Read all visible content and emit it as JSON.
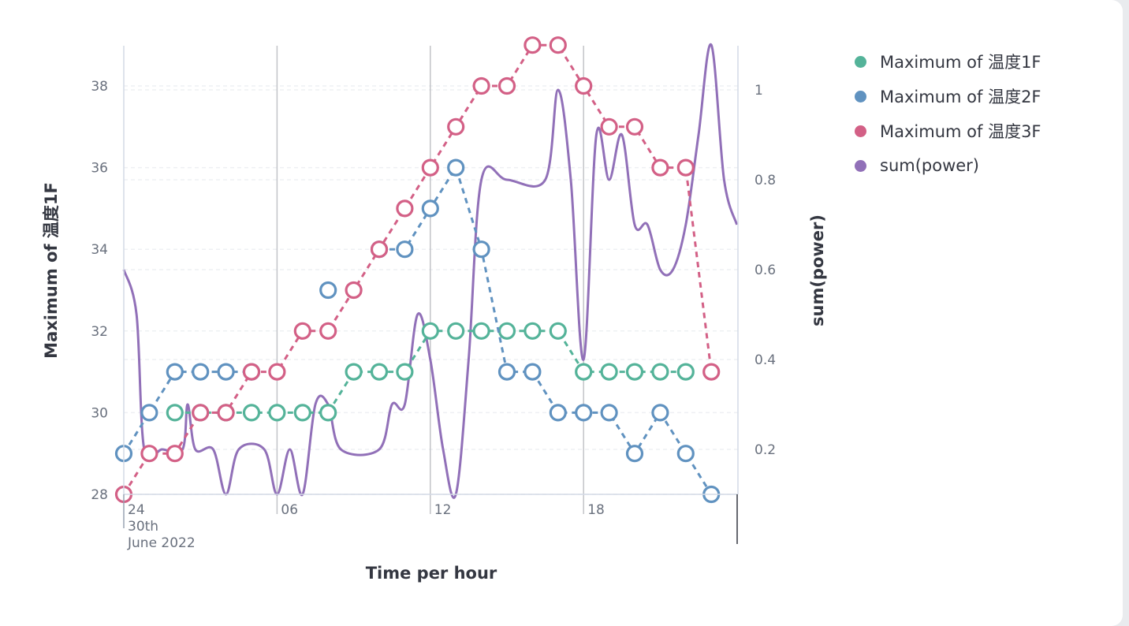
{
  "chart_data": {
    "type": "line",
    "title": "",
    "xlabel": "Time per hour",
    "ylabel_left": "Maximum of 温度1F",
    "ylabel_right": "sum(power)",
    "x_hours": [
      0,
      1,
      2,
      3,
      4,
      5,
      6,
      7,
      8,
      9,
      10,
      11,
      12,
      13,
      14,
      15,
      16,
      17,
      18,
      19,
      20,
      21,
      22,
      23
    ],
    "x_ticks": [
      {
        "hour": 0,
        "lines": [
          "24",
          "30th",
          "June 2022"
        ]
      },
      {
        "hour": 6,
        "lines": [
          "06"
        ]
      },
      {
        "hour": 12,
        "lines": [
          "12"
        ]
      },
      {
        "hour": 18,
        "lines": [
          "18"
        ]
      }
    ],
    "y_left": {
      "min": 28,
      "max": 39,
      "ticks": [
        28,
        30,
        32,
        34,
        36,
        38
      ]
    },
    "y_right": {
      "min": 0.1,
      "max": 1.1,
      "ticks": [
        0.2,
        0.4,
        0.6,
        0.8,
        1
      ]
    },
    "grid": true,
    "legend_position": "right",
    "series": [
      {
        "name": "Maximum of 温度1F",
        "axis": "left",
        "color": "#54b399",
        "style": "dashed-markers",
        "values": [
          null,
          null,
          30,
          30,
          30,
          30,
          30,
          30,
          30,
          31,
          31,
          31,
          32,
          32,
          32,
          32,
          32,
          32,
          31,
          31,
          31,
          31,
          31,
          null
        ]
      },
      {
        "name": "Maximum of 温度2F",
        "axis": "left",
        "color": "#6092c0",
        "style": "dashed-markers",
        "values": [
          29,
          30,
          31,
          31,
          31,
          31,
          null,
          null,
          33,
          null,
          34,
          34,
          35,
          36,
          34,
          31,
          31,
          30,
          30,
          30,
          29,
          30,
          29,
          28
        ]
      },
      {
        "name": "Maximum of 温度3F",
        "axis": "left",
        "color": "#d36086",
        "style": "dashed-markers",
        "values": [
          28,
          29,
          29,
          30,
          30,
          31,
          31,
          32,
          32,
          33,
          34,
          35,
          36,
          37,
          38,
          38,
          39,
          39,
          38,
          37,
          37,
          36,
          36,
          31
        ]
      },
      {
        "name": "sum(power)",
        "axis": "right",
        "color": "#9170b8",
        "style": "smooth-line",
        "points": [
          [
            0.0,
            0.6
          ],
          [
            0.5,
            0.5
          ],
          [
            0.8,
            0.2
          ],
          [
            1.5,
            0.2
          ],
          [
            2.3,
            0.2
          ],
          [
            2.5,
            0.3
          ],
          [
            2.8,
            0.2
          ],
          [
            3.5,
            0.2
          ],
          [
            4.0,
            0.1
          ],
          [
            4.5,
            0.2
          ],
          [
            5.5,
            0.2
          ],
          [
            6.0,
            0.1
          ],
          [
            6.5,
            0.2
          ],
          [
            7.0,
            0.1
          ],
          [
            7.5,
            0.3
          ],
          [
            8.0,
            0.3
          ],
          [
            8.5,
            0.2
          ],
          [
            10.0,
            0.2
          ],
          [
            10.5,
            0.3
          ],
          [
            11.0,
            0.3
          ],
          [
            11.5,
            0.5
          ],
          [
            12.0,
            0.4
          ],
          [
            12.5,
            0.2
          ],
          [
            13.0,
            0.1
          ],
          [
            13.5,
            0.4
          ],
          [
            14.0,
            0.8
          ],
          [
            15.0,
            0.8
          ],
          [
            16.5,
            0.8
          ],
          [
            17.0,
            1.0
          ],
          [
            17.5,
            0.8
          ],
          [
            18.0,
            0.4
          ],
          [
            18.5,
            0.9
          ],
          [
            19.0,
            0.8
          ],
          [
            19.5,
            0.9
          ],
          [
            20.0,
            0.7
          ],
          [
            20.5,
            0.7
          ],
          [
            21.0,
            0.6
          ],
          [
            21.5,
            0.6
          ],
          [
            22.0,
            0.7
          ],
          [
            22.5,
            0.9
          ],
          [
            23.0,
            1.1
          ],
          [
            23.5,
            0.8
          ],
          [
            24.0,
            0.7
          ]
        ]
      }
    ]
  }
}
